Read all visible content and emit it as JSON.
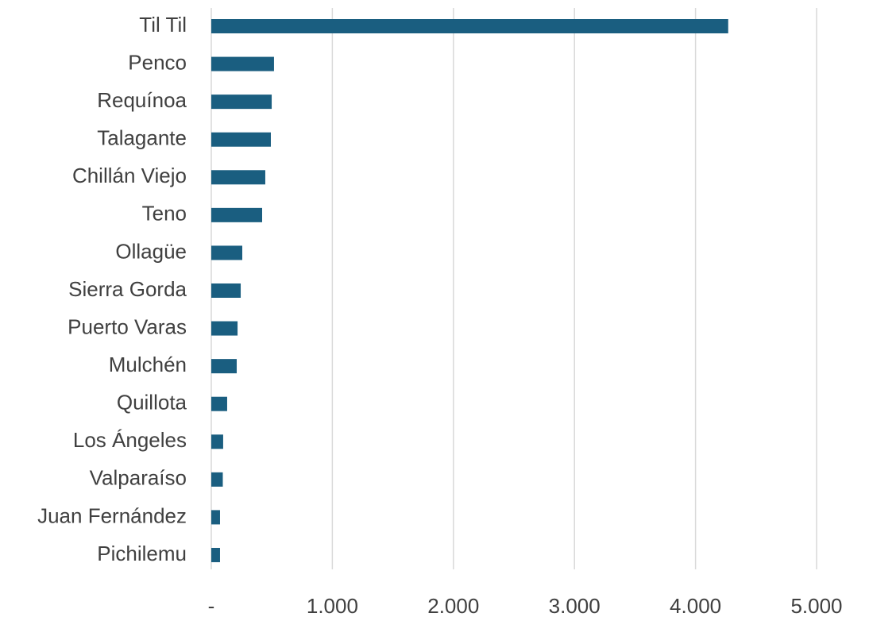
{
  "chart_data": {
    "type": "bar",
    "orientation": "horizontal",
    "categories": [
      "Til Til",
      "Penco",
      "Requínoa",
      "Talagante",
      "Chillán Viejo",
      "Teno",
      "Ollagüe",
      "Sierra Gorda",
      "Puerto Varas",
      "Mulchén",
      "Quillota",
      "Los Ángeles",
      "Valparaíso",
      "Juan Fernández",
      "Pichilemu"
    ],
    "values": [
      4270,
      518,
      499,
      492,
      446,
      420,
      256,
      243,
      217,
      210,
      131,
      98,
      95,
      72,
      72
    ],
    "color": "#1a5e80",
    "xlim": [
      0,
      5000
    ],
    "xticks": [
      {
        "value": 0,
        "label": "-"
      },
      {
        "value": 1000,
        "label": "1.000"
      },
      {
        "value": 2000,
        "label": "2.000"
      },
      {
        "value": 3000,
        "label": "3.000"
      },
      {
        "value": 4000,
        "label": "4.000"
      },
      {
        "value": 5000,
        "label": "5.000"
      }
    ],
    "grid": true
  }
}
